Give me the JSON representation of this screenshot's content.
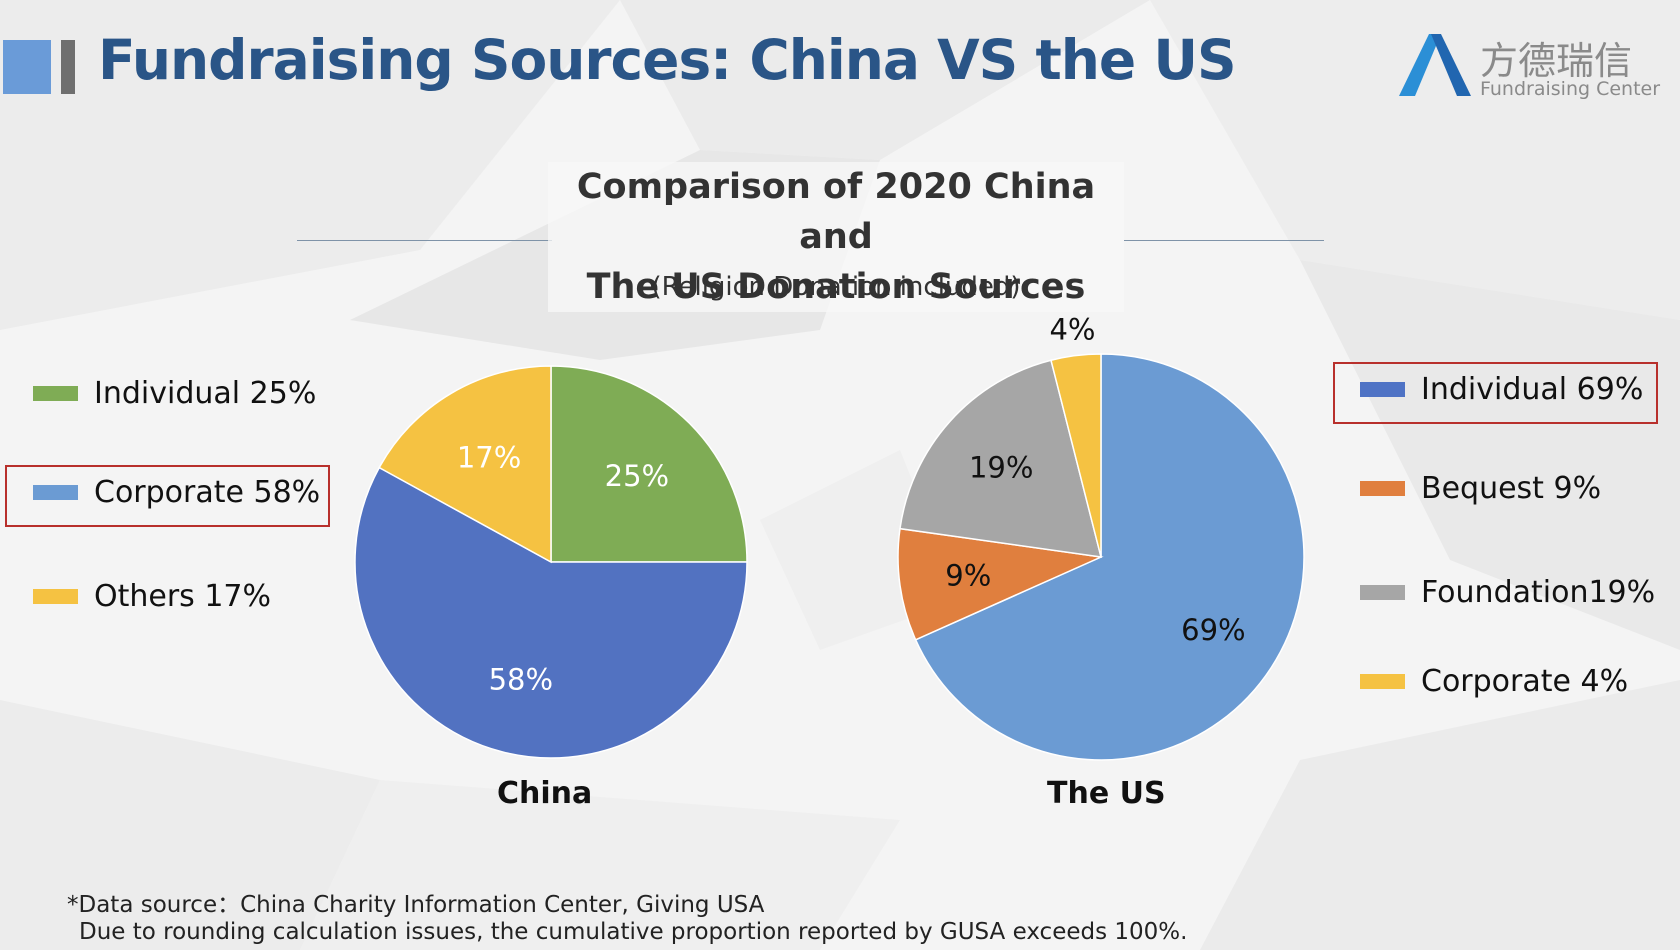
{
  "header": {
    "title": "Fundraising Sources: China VS the US",
    "logo_cn": "方德瑞信",
    "logo_en": "Fundraising Center"
  },
  "chart_data": [
    {
      "type": "pie",
      "title": "Comparison of 2020 China and The US Donation Sources",
      "title_line1": "Comparison of 2020 China and",
      "title_line2": "The US Donation Sources",
      "subtitle": "(Religion Donation included)",
      "name": "China",
      "categories": [
        "Individual",
        "Corporate",
        "Others"
      ],
      "values": [
        25,
        58,
        17
      ],
      "labels": [
        "25%",
        "58%",
        "17%"
      ],
      "colors": [
        "#7fac55",
        "#5272c1",
        "#f5c242"
      ],
      "legend": [
        "Individual 25%",
        "Corporate 58%",
        "Others 17%"
      ],
      "legend_position": "left",
      "highlighted": "Corporate"
    },
    {
      "type": "pie",
      "name": "The US",
      "categories": [
        "Individual",
        "Bequest",
        "Foundation",
        "Corporate"
      ],
      "values": [
        69,
        9,
        19,
        4
      ],
      "labels": [
        "69%",
        "9%",
        "19%",
        "4%"
      ],
      "colors": [
        "#6b9bd3",
        "#e07f3e",
        "#a6a6a6",
        "#f5c242"
      ],
      "legend": [
        "Individual 69%",
        "Bequest 9%",
        "Foundation19%",
        "Corporate 4%"
      ],
      "legend_position": "right",
      "highlighted": "Individual"
    }
  ],
  "footnote": {
    "line1": "*Data source：China Charity Information Center, Giving USA",
    "line2": "Due to rounding calculation issues, the cumulative proportion reported by GUSA exceeds 100%."
  }
}
